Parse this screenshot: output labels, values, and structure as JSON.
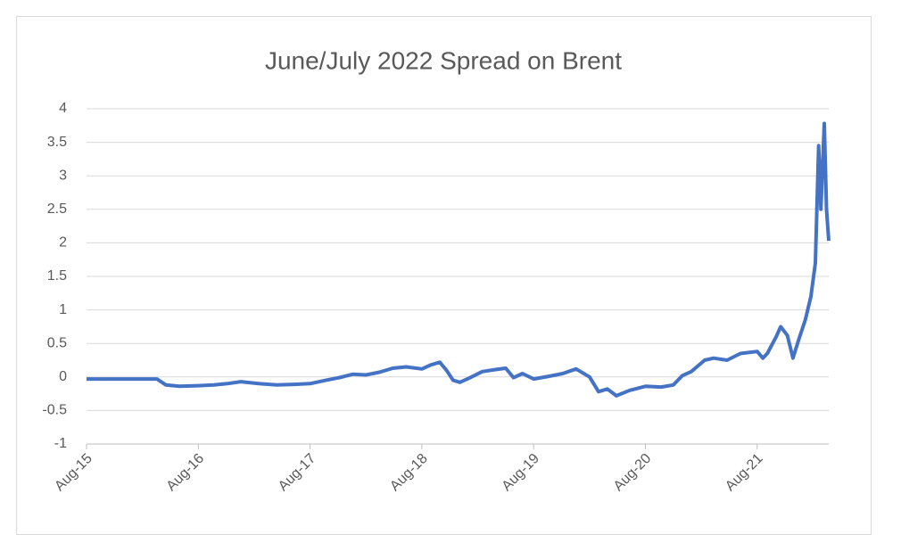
{
  "chart_data": {
    "type": "line",
    "title": "June/July 2022 Spread on Brent",
    "x": [
      2015.58,
      2016.01,
      2016.21,
      2016.29,
      2016.41,
      2016.58,
      2016.72,
      2016.84,
      2016.96,
      2017.12,
      2017.28,
      2017.44,
      2017.58,
      2017.72,
      2017.84,
      2017.96,
      2018.08,
      2018.2,
      2018.32,
      2018.44,
      2018.58,
      2018.66,
      2018.74,
      2018.8,
      2018.86,
      2018.92,
      2019.0,
      2019.12,
      2019.24,
      2019.33,
      2019.4,
      2019.48,
      2019.58,
      2019.72,
      2019.84,
      2019.96,
      2020.08,
      2020.16,
      2020.24,
      2020.32,
      2020.44,
      2020.58,
      2020.72,
      2020.83,
      2020.91,
      2020.99,
      2021.11,
      2021.19,
      2021.31,
      2021.43,
      2021.58,
      2021.63,
      2021.67,
      2021.75,
      2021.79,
      2021.85,
      2021.9,
      2021.95,
      2022.01,
      2022.06,
      2022.1,
      2022.13,
      2022.15,
      2022.18,
      2022.2,
      2022.22
    ],
    "values": [
      -0.03,
      -0.03,
      -0.03,
      -0.12,
      -0.14,
      -0.13,
      -0.12,
      -0.1,
      -0.07,
      -0.1,
      -0.12,
      -0.11,
      -0.1,
      -0.05,
      -0.01,
      0.04,
      0.03,
      0.07,
      0.13,
      0.15,
      0.12,
      0.18,
      0.22,
      0.1,
      -0.05,
      -0.08,
      -0.02,
      0.08,
      0.11,
      0.13,
      -0.01,
      0.05,
      -0.03,
      0.01,
      0.05,
      0.12,
      0.0,
      -0.22,
      -0.18,
      -0.28,
      -0.2,
      -0.14,
      -0.15,
      -0.12,
      0.02,
      0.08,
      0.25,
      0.28,
      0.25,
      0.35,
      0.38,
      0.28,
      0.35,
      0.6,
      0.75,
      0.62,
      0.28,
      0.55,
      0.85,
      1.2,
      1.7,
      3.45,
      2.5,
      3.78,
      2.5,
      2.03
    ],
    "color": "#4472c4",
    "xlim": [
      2015.58,
      2022.22
    ],
    "xticks": [
      {
        "value": 2015.58,
        "label": "Aug-15"
      },
      {
        "value": 2016.58,
        "label": "Aug-16"
      },
      {
        "value": 2017.58,
        "label": "Aug-17"
      },
      {
        "value": 2018.58,
        "label": "Aug-18"
      },
      {
        "value": 2019.58,
        "label": "Aug-19"
      },
      {
        "value": 2020.58,
        "label": "Aug-20"
      },
      {
        "value": 2021.58,
        "label": "Aug-21"
      }
    ],
    "ylim": [
      -1,
      4
    ],
    "yticks": [
      -1,
      -0.5,
      0,
      0.5,
      1,
      1.5,
      2,
      2.5,
      3,
      3.5,
      4
    ],
    "grid": true
  }
}
